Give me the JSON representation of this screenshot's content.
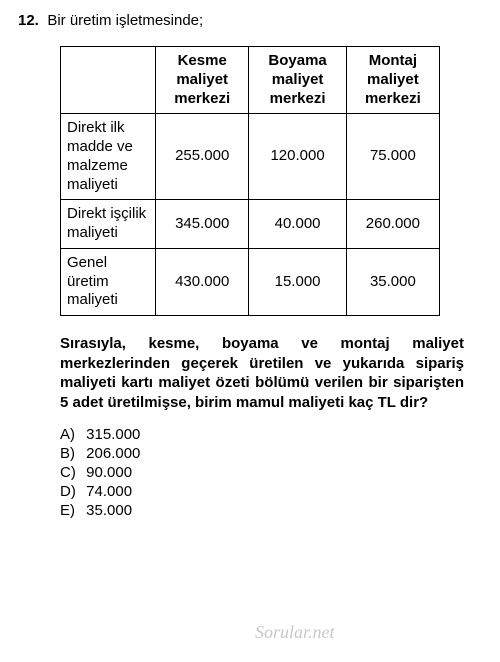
{
  "question": {
    "number": "12.",
    "intro": "Bir üretim işletmesinde;",
    "body": "Sırasıyla, kesme, boyama ve montaj maliyet merkezlerinden geçerek üretilen ve yukarıda sipariş maliyeti kartı maliyet özeti bölümü verilen bir siparişten 5 adet üretilmişse, birim mamul maliyeti kaç TL dir?"
  },
  "table": {
    "columns": [
      "",
      "Kesme maliyet merkezi",
      "Boyama maliyet merkezi",
      "Montaj maliyet merkezi"
    ],
    "rows": [
      {
        "label": "Direkt ilk madde ve malzeme maliyeti",
        "values": [
          "255.000",
          "120.000",
          "75.000"
        ]
      },
      {
        "label": "Direkt işçilik maliyeti",
        "values": [
          "345.000",
          "40.000",
          "260.000"
        ]
      },
      {
        "label": "Genel üretim maliyeti",
        "values": [
          "430.000",
          "15.000",
          "35.000"
        ]
      }
    ],
    "col_widths": [
      "95px",
      "95px",
      "95px",
      "95px"
    ],
    "border_color": "#000000",
    "font_size": 15
  },
  "options": [
    {
      "letter": "A)",
      "text": "315.000"
    },
    {
      "letter": "B)",
      "text": "206.000"
    },
    {
      "letter": "C)",
      "text": "90.000"
    },
    {
      "letter": "D)",
      "text": "74.000"
    },
    {
      "letter": "E)",
      "text": "35.000"
    }
  ],
  "watermark": "Sorular.net",
  "colors": {
    "text": "#000000",
    "background": "#ffffff",
    "watermark": "#c8c8c8"
  }
}
